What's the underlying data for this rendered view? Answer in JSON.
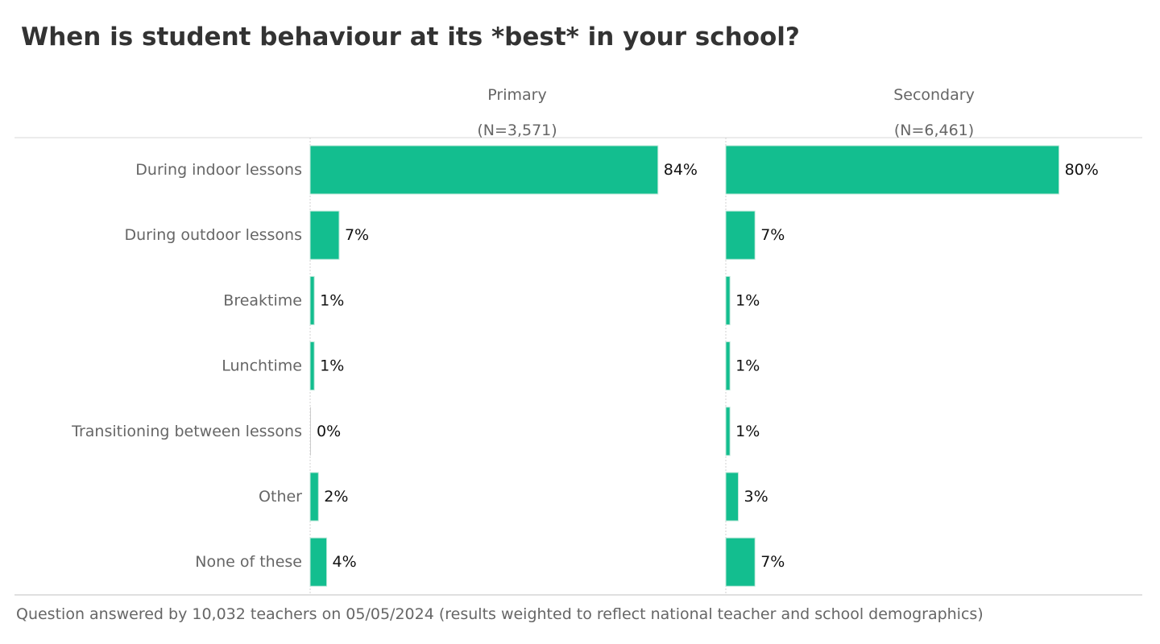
{
  "chart_data": {
    "type": "bar",
    "orientation": "horizontal",
    "title": "When is student behaviour at its *best* in your school?",
    "categories": [
      "During indoor lessons",
      "During outdoor lessons",
      "Breaktime",
      "Lunchtime",
      "Transitioning between lessons",
      "Other",
      "None of these"
    ],
    "series": [
      {
        "name": "Primary",
        "subtitle": "(N=3,571)",
        "values": [
          84,
          7,
          1,
          1,
          0,
          2,
          4
        ],
        "labels": [
          "84%",
          "7%",
          "1%",
          "1%",
          "0%",
          "2%",
          "4%"
        ]
      },
      {
        "name": "Secondary",
        "subtitle": "(N=6,461)",
        "values": [
          80,
          7,
          1,
          1,
          1,
          3,
          7
        ],
        "labels": [
          "80%",
          "7%",
          "1%",
          "1%",
          "1%",
          "3%",
          "7%"
        ]
      }
    ],
    "xlim": [
      0,
      100
    ],
    "unit": "%",
    "grid": false,
    "legend": "none",
    "bar_color": "#13BE8F",
    "footnote": "Question answered by 10,032 teachers on 05/05/2024 (results weighted to reflect national teacher and school demographics)"
  }
}
